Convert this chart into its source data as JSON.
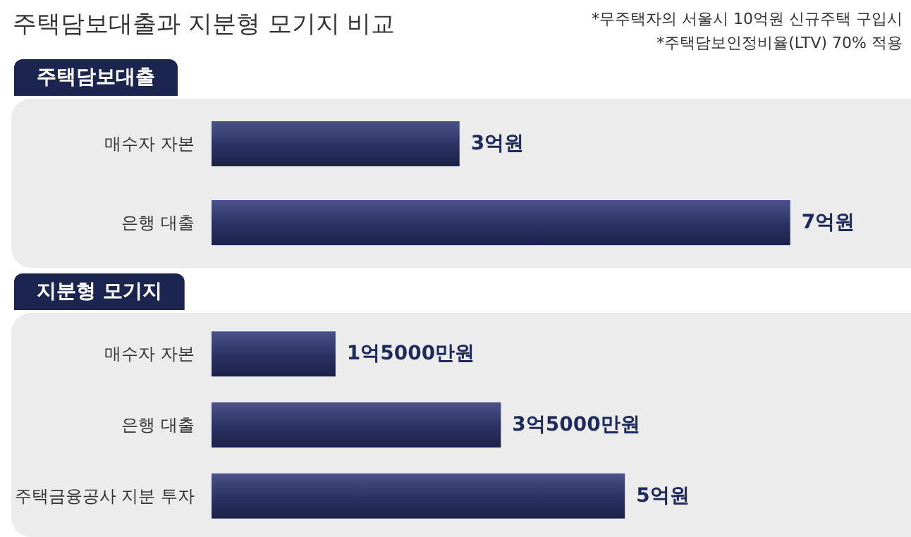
{
  "chart_data": [
    {
      "type": "bar",
      "orientation": "horizontal",
      "title": "주택담보대출과 지분형 모기지 비교",
      "subtitle": "주택담보대출",
      "annotations": [
        "*무주택자의 서울시 10억원 신규주택 구입시",
        "*주택담보인정비율(LTV) 70% 적용"
      ],
      "categories": [
        "매수자 자본",
        "은행 대출"
      ],
      "values": [
        3,
        7
      ],
      "value_labels": [
        "3억원",
        "7억원"
      ],
      "color": "#2d3466"
    },
    {
      "type": "bar",
      "orientation": "horizontal",
      "title": "지분형 모기지",
      "categories": [
        "매수자 자본",
        "은행 대출",
        "주택금융공사 지분 투자"
      ],
      "values": [
        1.5,
        3.5,
        5
      ],
      "value_labels": [
        "1억5000만원",
        "3억5000만원",
        "5억원"
      ],
      "color": "#2d3466"
    }
  ]
}
